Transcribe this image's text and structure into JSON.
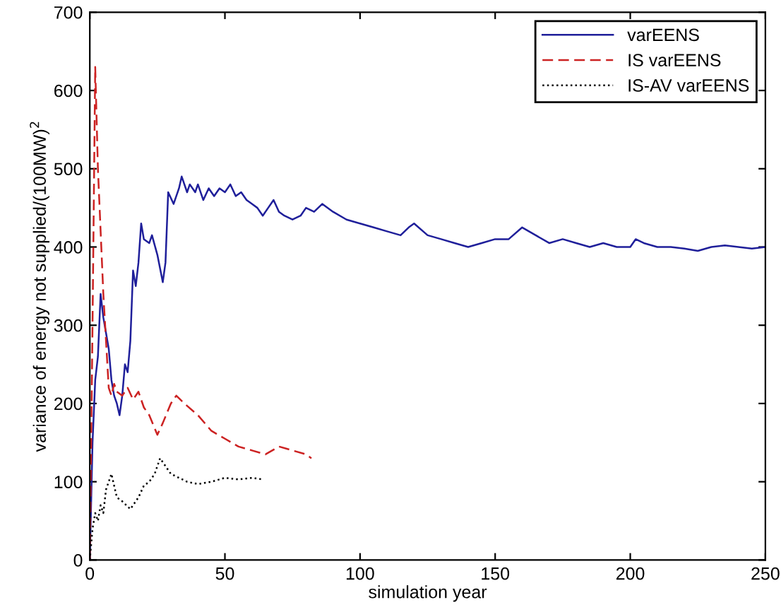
{
  "chart_data": {
    "type": "line",
    "xlabel": "simulation year",
    "ylabel": "variance of energy not supplied/(100MW)$^{2}$",
    "xlim": [
      0,
      250
    ],
    "ylim": [
      0,
      700
    ],
    "xticks": [
      0,
      50,
      100,
      150,
      200,
      250
    ],
    "yticks": [
      0,
      100,
      200,
      300,
      400,
      500,
      600,
      700
    ],
    "grid": false,
    "legend": "top right",
    "series": [
      {
        "name": "varEENS",
        "color": "#1f1f9a",
        "line_style": "solid",
        "x": [
          0,
          1,
          2,
          3,
          4,
          5,
          6,
          7,
          8,
          9,
          10,
          11,
          12,
          13,
          14,
          15,
          16,
          17,
          18,
          19,
          20,
          22,
          23,
          25,
          27,
          28,
          29,
          31,
          33,
          34,
          36,
          37,
          39,
          40,
          42,
          44,
          46,
          48,
          50,
          52,
          54,
          56,
          58,
          60,
          62,
          64,
          66,
          68,
          70,
          72,
          75,
          78,
          80,
          83,
          86,
          90,
          95,
          100,
          105,
          110,
          115,
          118,
          120,
          125,
          130,
          135,
          140,
          145,
          150,
          155,
          160,
          165,
          170,
          175,
          180,
          185,
          190,
          195,
          200,
          202,
          205,
          210,
          215,
          220,
          225,
          230,
          235,
          240,
          245,
          250
        ],
        "values": [
          0,
          150,
          230,
          260,
          340,
          310,
          290,
          270,
          230,
          210,
          200,
          185,
          210,
          250,
          240,
          280,
          370,
          350,
          380,
          430,
          410,
          405,
          415,
          390,
          355,
          380,
          470,
          455,
          475,
          490,
          470,
          480,
          470,
          480,
          460,
          475,
          465,
          475,
          470,
          480,
          465,
          470,
          460,
          455,
          450,
          440,
          450,
          460,
          445,
          440,
          435,
          440,
          450,
          445,
          455,
          445,
          435,
          430,
          425,
          420,
          415,
          425,
          430,
          415,
          410,
          405,
          400,
          405,
          410,
          410,
          425,
          415,
          405,
          410,
          405,
          400,
          405,
          400,
          400,
          410,
          405,
          400,
          400,
          398,
          395,
          400,
          402,
          400,
          398,
          400
        ]
      },
      {
        "name": "IS varEENS",
        "color": "#cc2222",
        "line_style": "dashed",
        "x": [
          0,
          1,
          2,
          3,
          4,
          5,
          6,
          7,
          8,
          9,
          10,
          12,
          14,
          16,
          18,
          20,
          22,
          25,
          27,
          30,
          32,
          35,
          40,
          45,
          50,
          55,
          60,
          65,
          70,
          75,
          80,
          82
        ],
        "values": [
          0,
          300,
          630,
          500,
          420,
          340,
          280,
          220,
          210,
          225,
          215,
          210,
          220,
          205,
          215,
          195,
          185,
          160,
          175,
          200,
          210,
          200,
          185,
          165,
          155,
          145,
          140,
          135,
          145,
          140,
          135,
          130
        ]
      },
      {
        "name": "IS-AV varEENS",
        "color": "#000000",
        "line_style": "dotted",
        "x": [
          0,
          1,
          2,
          3,
          4,
          5,
          6,
          7,
          8,
          9,
          10,
          12,
          15,
          18,
          20,
          22,
          24,
          26,
          28,
          30,
          33,
          36,
          40,
          45,
          50,
          55,
          60,
          64
        ],
        "values": [
          0,
          40,
          60,
          50,
          70,
          60,
          90,
          100,
          110,
          95,
          80,
          75,
          65,
          80,
          95,
          100,
          110,
          130,
          120,
          110,
          105,
          100,
          97,
          100,
          105,
          103,
          105,
          103
        ]
      }
    ]
  }
}
